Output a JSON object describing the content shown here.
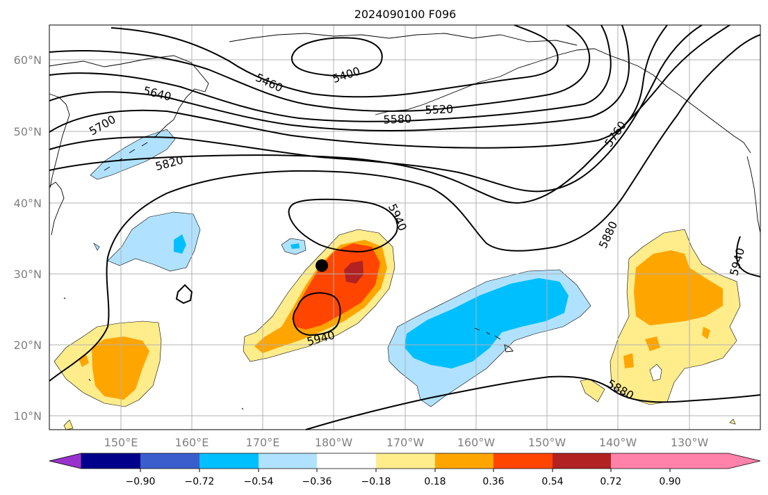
{
  "title": "2024090100 F096",
  "map": {
    "lat_labels": [
      "60°N",
      "50°N",
      "40°N",
      "30°N",
      "20°N",
      "10°N"
    ],
    "lon_labels": [
      "150°E",
      "160°E",
      "170°E",
      "180°W",
      "170°W",
      "160°W",
      "150°W",
      "140°W",
      "130°W"
    ],
    "height_contour_labels": [
      "5400",
      "5460",
      "5520",
      "5580",
      "5640",
      "5700",
      "5760",
      "5820",
      "5880",
      "5880",
      "5940",
      "5940",
      "5940"
    ],
    "marker": "storm-position-dot"
  },
  "colorbar": {
    "tick_labels": [
      "−0.90",
      "−0.72",
      "−0.54",
      "−0.36",
      "−0.18",
      "0.18",
      "0.36",
      "0.54",
      "0.72",
      "0.90"
    ],
    "colors": [
      "#9932cc",
      "#00008b",
      "#3a5fcd",
      "#00bfff",
      "#b0e2ff",
      "#ffffff",
      "#ffec8b",
      "#ffa500",
      "#ff4500",
      "#b22222",
      "#ff82ab"
    ]
  }
}
